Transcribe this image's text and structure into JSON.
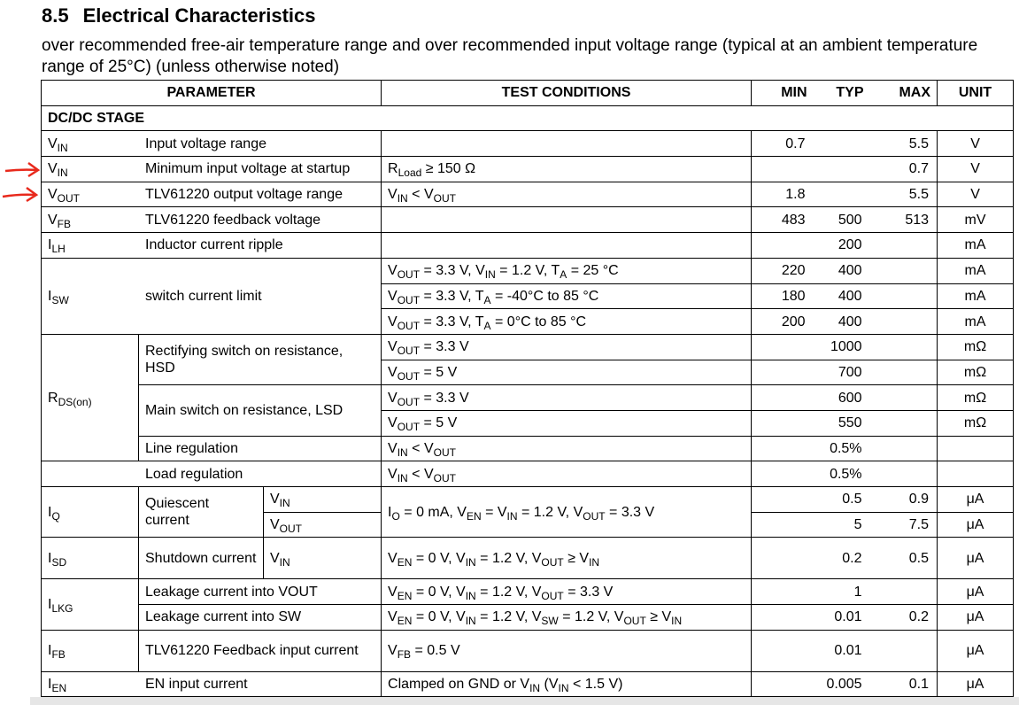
{
  "section": {
    "number": "8.5",
    "title": "Electrical Characteristics"
  },
  "description": "over recommended free-air temperature range and over recommended input voltage range (typical at an ambient temperature range of 25°C) (unless otherwise noted)",
  "table": {
    "headers": [
      "PARAMETER",
      "TEST CONDITIONS",
      "MIN",
      "TYP",
      "MAX",
      "UNIT"
    ],
    "group": "DC/DC STAGE",
    "rows": [
      {
        "symbol": [
          "V",
          {
            "sub": "IN"
          }
        ],
        "parameter": "Input voltage range",
        "min": 0.7,
        "max": 5.5,
        "unit": "V"
      },
      {
        "symbol": [
          "V",
          {
            "sub": "IN"
          }
        ],
        "parameter": "Minimum input voltage at startup",
        "conditions": [
          "R",
          {
            "sub": "Load"
          },
          " ≥ 150 Ω"
        ],
        "max": 0.7,
        "unit": "V"
      },
      {
        "symbol": [
          "V",
          {
            "sub": "OUT"
          }
        ],
        "parameter": "TLV61220 output voltage range",
        "conditions": [
          "V",
          {
            "sub": "IN"
          },
          " < V",
          {
            "sub": "OUT"
          }
        ],
        "min": 1.8,
        "max": 5.5,
        "unit": "V"
      },
      {
        "symbol": [
          "V",
          {
            "sub": "FB"
          }
        ],
        "parameter": "TLV61220 feedback voltage",
        "min": 483,
        "typ": 500,
        "max": 513,
        "unit": "mV"
      },
      {
        "symbol": [
          "I",
          {
            "sub": "LH"
          }
        ],
        "parameter": "Inductor current ripple",
        "typ": 200,
        "unit": "mA"
      },
      {
        "symbol": [
          "I",
          {
            "sub": "SW"
          }
        ],
        "parameter": "switch current limit",
        "conditions": [
          "V",
          {
            "sub": "OUT"
          },
          " = 3.3 V, V",
          {
            "sub": "IN"
          },
          " = 1.2 V, T",
          {
            "sub": "A"
          },
          " = 25 °C"
        ],
        "min": 220,
        "typ": 400,
        "unit": "mA"
      },
      {
        "conditions": [
          "V",
          {
            "sub": "OUT"
          },
          " = 3.3 V, T",
          {
            "sub": "A"
          },
          " = -40°C to 85 °C"
        ],
        "min": 180,
        "typ": 400,
        "unit": "mA"
      },
      {
        "conditions": [
          "V",
          {
            "sub": "OUT"
          },
          " = 3.3 V, T",
          {
            "sub": "A"
          },
          " = 0°C to 85 °C"
        ],
        "min": 200,
        "typ": 400,
        "unit": "mA"
      },
      {
        "symbol": [
          "R",
          {
            "sub": "DS(on)"
          }
        ],
        "parameter": "Rectifying switch on resistance, HSD",
        "conditions": [
          "V",
          {
            "sub": "OUT"
          },
          " = 3.3 V"
        ],
        "typ": 1000,
        "unit": "mΩ"
      },
      {
        "conditions": [
          "V",
          {
            "sub": "OUT"
          },
          " = 5 V"
        ],
        "typ": 700,
        "unit": "mΩ"
      },
      {
        "parameter": "Main switch on resistance, LSD",
        "conditions": [
          "V",
          {
            "sub": "OUT"
          },
          " = 3.3 V"
        ],
        "typ": 600,
        "unit": "mΩ"
      },
      {
        "conditions": [
          "V",
          {
            "sub": "OUT"
          },
          " = 5 V"
        ],
        "typ": 550,
        "unit": "mΩ"
      },
      {
        "parameter": "Line regulation",
        "conditions": [
          "V",
          {
            "sub": "IN"
          },
          " < V",
          {
            "sub": "OUT"
          }
        ],
        "typ": "0.5%"
      },
      {
        "parameter": "Load regulation",
        "conditions": [
          "V",
          {
            "sub": "IN"
          },
          " < V",
          {
            "sub": "OUT"
          }
        ],
        "typ": "0.5%"
      },
      {
        "symbol": [
          "I",
          {
            "sub": "Q"
          }
        ],
        "parameter": "Quiescent current",
        "pin": [
          "V",
          {
            "sub": "IN"
          }
        ],
        "conditions": [
          "I",
          {
            "sub": "O"
          },
          " = 0 mA, V",
          {
            "sub": "EN"
          },
          " = V",
          {
            "sub": "IN"
          },
          " = 1.2 V, V",
          {
            "sub": "OUT"
          },
          " = 3.3 V"
        ],
        "typ": 0.5,
        "max": 0.9,
        "unit": "μA"
      },
      {
        "pin": [
          "V",
          {
            "sub": "OUT"
          }
        ],
        "typ": 5,
        "max": 7.5,
        "unit": "μA"
      },
      {
        "symbol": [
          "I",
          {
            "sub": "SD"
          }
        ],
        "parameter": "Shutdown current",
        "pin": [
          "V",
          {
            "sub": "IN"
          }
        ],
        "conditions": [
          "V",
          {
            "sub": "EN"
          },
          " = 0 V, V",
          {
            "sub": "IN"
          },
          " = 1.2 V, V",
          {
            "sub": "OUT"
          },
          " ≥ V",
          {
            "sub": "IN"
          }
        ],
        "typ": 0.2,
        "max": 0.5,
        "unit": "μA"
      },
      {
        "symbol": [
          "I",
          {
            "sub": "LKG"
          }
        ],
        "parameter": "Leakage current into VOUT",
        "conditions": [
          "V",
          {
            "sub": "EN"
          },
          " = 0 V, V",
          {
            "sub": "IN"
          },
          " = 1.2 V, V",
          {
            "sub": "OUT"
          },
          " = 3.3 V"
        ],
        "typ": 1,
        "unit": "μA"
      },
      {
        "parameter": "Leakage current into SW",
        "conditions": [
          "V",
          {
            "sub": "EN"
          },
          " = 0 V, V",
          {
            "sub": "IN"
          },
          " = 1.2 V, V",
          {
            "sub": "SW"
          },
          " = 1.2 V, V",
          {
            "sub": "OUT"
          },
          " ≥ V",
          {
            "sub": "IN"
          }
        ],
        "typ": 0.01,
        "max": 0.2,
        "unit": "μA"
      },
      {
        "symbol": [
          "I",
          {
            "sub": "FB"
          }
        ],
        "parameter": "TLV61220 Feedback input current",
        "conditions": [
          "V",
          {
            "sub": "FB"
          },
          " = 0.5 V"
        ],
        "typ": 0.01,
        "unit": "μA"
      },
      {
        "symbol": [
          "I",
          {
            "sub": "EN"
          }
        ],
        "parameter": "EN input current",
        "conditions": [
          "Clamped on GND or V",
          {
            "sub": "IN"
          },
          " (V",
          {
            "sub": "IN"
          },
          " < 1.5 V)"
        ],
        "typ": 0.005,
        "max": 0.1,
        "unit": "μA"
      }
    ]
  }
}
